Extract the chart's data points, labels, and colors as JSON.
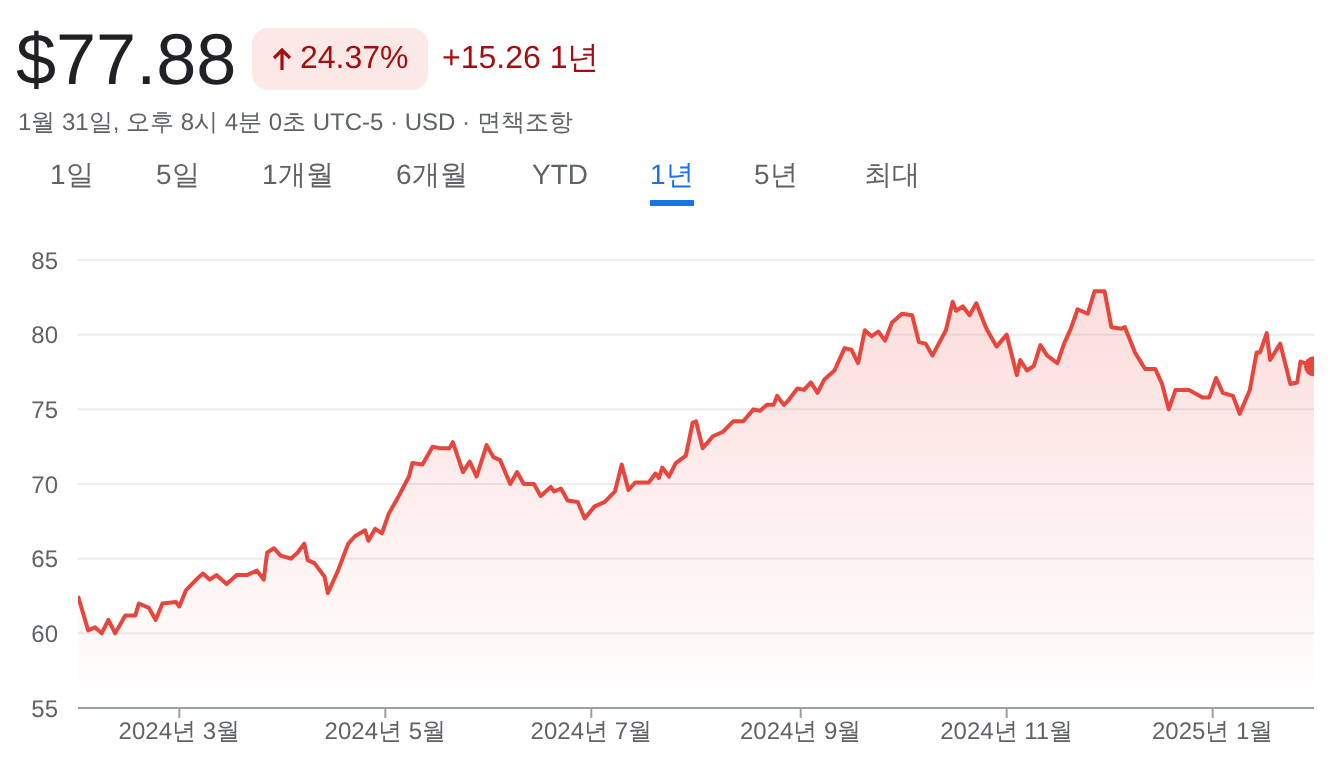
{
  "chart_data": {
    "type": "area",
    "title": "$77.88",
    "subtitle": "1월 31일, 오후 8시 4분 0초 UTC-5 · USD · 면책조항",
    "annotations": [
      "24.37%",
      "+15.26 1년",
      "1일",
      "5일",
      "1개월",
      "6개월",
      "YTD",
      "1년",
      "5년",
      "최대"
    ],
    "x": [
      "2024-01-31",
      "2024-02-03",
      "2024-02-05",
      "2024-02-07",
      "2024-02-09",
      "2024-02-11",
      "2024-02-14",
      "2024-02-17",
      "2024-02-18",
      "2024-02-21",
      "2024-02-23",
      "2024-02-25",
      "2024-02-29",
      "2024-03-01",
      "2024-03-03",
      "2024-03-06",
      "2024-03-08",
      "2024-03-10",
      "2024-03-12",
      "2024-03-15",
      "2024-03-18",
      "2024-03-21",
      "2024-03-24",
      "2024-03-26",
      "2024-03-27",
      "2024-03-29",
      "2024-03-31",
      "2024-04-03",
      "2024-04-05",
      "2024-04-07",
      "2024-04-08",
      "2024-04-10",
      "2024-04-13",
      "2024-04-14",
      "2024-04-17",
      "2024-04-20",
      "2024-04-22",
      "2024-04-25",
      "2024-04-26",
      "2024-04-28",
      "2024-04-30",
      "2024-05-02",
      "2024-05-05",
      "2024-05-08",
      "2024-05-09",
      "2024-05-12",
      "2024-05-15",
      "2024-05-17",
      "2024-05-20",
      "2024-05-21",
      "2024-05-24",
      "2024-05-26",
      "2024-05-28",
      "2024-05-31",
      "2024-06-02",
      "2024-06-04",
      "2024-06-07",
      "2024-06-09",
      "2024-06-11",
      "2024-06-14",
      "2024-06-16",
      "2024-06-19",
      "2024-06-20",
      "2024-06-22",
      "2024-06-24",
      "2024-06-27",
      "2024-06-29",
      "2024-07-02",
      "2024-07-05",
      "2024-07-08",
      "2024-07-10",
      "2024-07-12",
      "2024-07-14",
      "2024-07-18",
      "2024-07-20",
      "2024-07-21",
      "2024-07-22",
      "2024-07-24",
      "2024-07-26",
      "2024-07-29",
      "2024-07-31",
      "2024-08-01",
      "2024-08-03",
      "2024-08-06",
      "2024-08-09",
      "2024-08-12",
      "2024-08-15",
      "2024-08-18",
      "2024-08-20",
      "2024-08-22",
      "2024-08-24",
      "2024-08-25",
      "2024-08-27",
      "2024-08-28",
      "2024-08-31",
      "2024-09-02",
      "2024-09-04",
      "2024-09-06",
      "2024-09-08",
      "2024-09-11",
      "2024-09-14",
      "2024-09-16",
      "2024-09-18",
      "2024-09-20",
      "2024-09-22",
      "2024-09-24",
      "2024-09-26",
      "2024-09-28",
      "2024-10-01",
      "2024-10-04",
      "2024-10-06",
      "2024-10-08",
      "2024-10-10",
      "2024-10-14",
      "2024-10-16",
      "2024-10-17",
      "2024-10-19",
      "2024-10-21",
      "2024-10-23",
      "2024-10-26",
      "2024-10-29",
      "2024-11-01",
      "2024-11-04",
      "2024-11-05",
      "2024-11-07",
      "2024-11-09",
      "2024-11-11",
      "2024-11-13",
      "2024-11-16",
      "2024-11-18",
      "2024-11-20",
      "2024-11-22",
      "2024-11-25",
      "2024-11-27",
      "2024-11-30",
      "2024-12-02",
      "2024-12-05",
      "2024-12-06",
      "2024-12-09",
      "2024-12-12",
      "2024-12-15",
      "2024-12-17",
      "2024-12-19",
      "2024-12-21",
      "2024-12-22",
      "2024-12-25",
      "2024-12-29",
      "2024-12-31",
      "2025-01-02",
      "2025-01-04",
      "2025-01-07",
      "2025-01-09",
      "2025-01-12",
      "2025-01-14",
      "2025-01-15",
      "2025-01-17",
      "2025-01-18",
      "2025-01-21",
      "2025-01-24",
      "2025-01-26",
      "2025-01-27",
      "2025-01-31"
    ],
    "values": [
      62.5,
      60.2,
      60.4,
      60.0,
      60.9,
      60.0,
      61.2,
      61.2,
      62.0,
      61.7,
      60.9,
      62.0,
      62.1,
      61.8,
      62.9,
      63.6,
      64.0,
      63.6,
      63.9,
      63.3,
      63.9,
      63.9,
      64.2,
      63.6,
      65.4,
      65.7,
      65.2,
      65.0,
      65.4,
      66.0,
      64.9,
      64.7,
      63.8,
      62.7,
      64.2,
      66.0,
      66.5,
      66.9,
      66.2,
      67.0,
      66.7,
      68.0,
      69.2,
      70.5,
      71.4,
      71.3,
      72.5,
      72.4,
      72.4,
      72.8,
      70.8,
      71.5,
      70.5,
      72.6,
      71.8,
      71.6,
      70.0,
      70.8,
      70.0,
      70.0,
      69.2,
      69.8,
      69.5,
      69.7,
      68.9,
      68.8,
      67.7,
      68.5,
      68.8,
      69.5,
      71.3,
      69.6,
      70.1,
      70.1,
      70.7,
      70.4,
      71.1,
      70.5,
      71.4,
      71.9,
      74.1,
      74.2,
      72.4,
      73.2,
      73.5,
      74.2,
      74.2,
      75.0,
      74.9,
      75.3,
      75.3,
      75.9,
      75.3,
      75.5,
      76.4,
      76.3,
      76.8,
      76.1,
      77.0,
      77.6,
      79.1,
      79.0,
      78.1,
      80.3,
      79.9,
      80.2,
      79.6,
      80.8,
      81.4,
      81.3,
      79.5,
      79.4,
      78.6,
      80.3,
      82.2,
      81.6,
      81.9,
      81.3,
      82.1,
      80.4,
      79.2,
      80.0,
      77.3,
      78.3,
      77.6,
      77.9,
      79.3,
      78.6,
      78.1,
      79.4,
      80.4,
      81.7,
      81.4,
      82.9,
      82.9,
      80.5,
      80.4,
      80.5,
      78.8,
      77.7,
      77.7,
      76.7,
      75.0,
      76.3,
      76.3,
      76.3,
      75.8,
      75.8,
      77.1,
      76.1,
      75.9,
      74.7,
      76.3,
      78.8,
      78.8,
      80.1,
      78.3,
      79.4,
      76.7,
      76.8,
      78.2,
      77.88
    ],
    "color": "#e8453c",
    "ylim": [
      55,
      85
    ],
    "yticks": [
      55,
      60,
      65,
      70,
      75,
      80,
      85
    ],
    "xlim": [
      "2024-01-31",
      "2025-01-31"
    ],
    "xticks": [
      {
        "value": "2024-03-01",
        "label": "2024년 3월"
      },
      {
        "value": "2024-05-01",
        "label": "2024년 5월"
      },
      {
        "value": "2024-07-01",
        "label": "2024년 7월"
      },
      {
        "value": "2024-09-01",
        "label": "2024년 9월"
      },
      {
        "value": "2024-11-01",
        "label": "2024년 11월"
      },
      {
        "value": "2025-01-01",
        "label": "2025년 1월"
      }
    ],
    "grid": "y"
  }
}
